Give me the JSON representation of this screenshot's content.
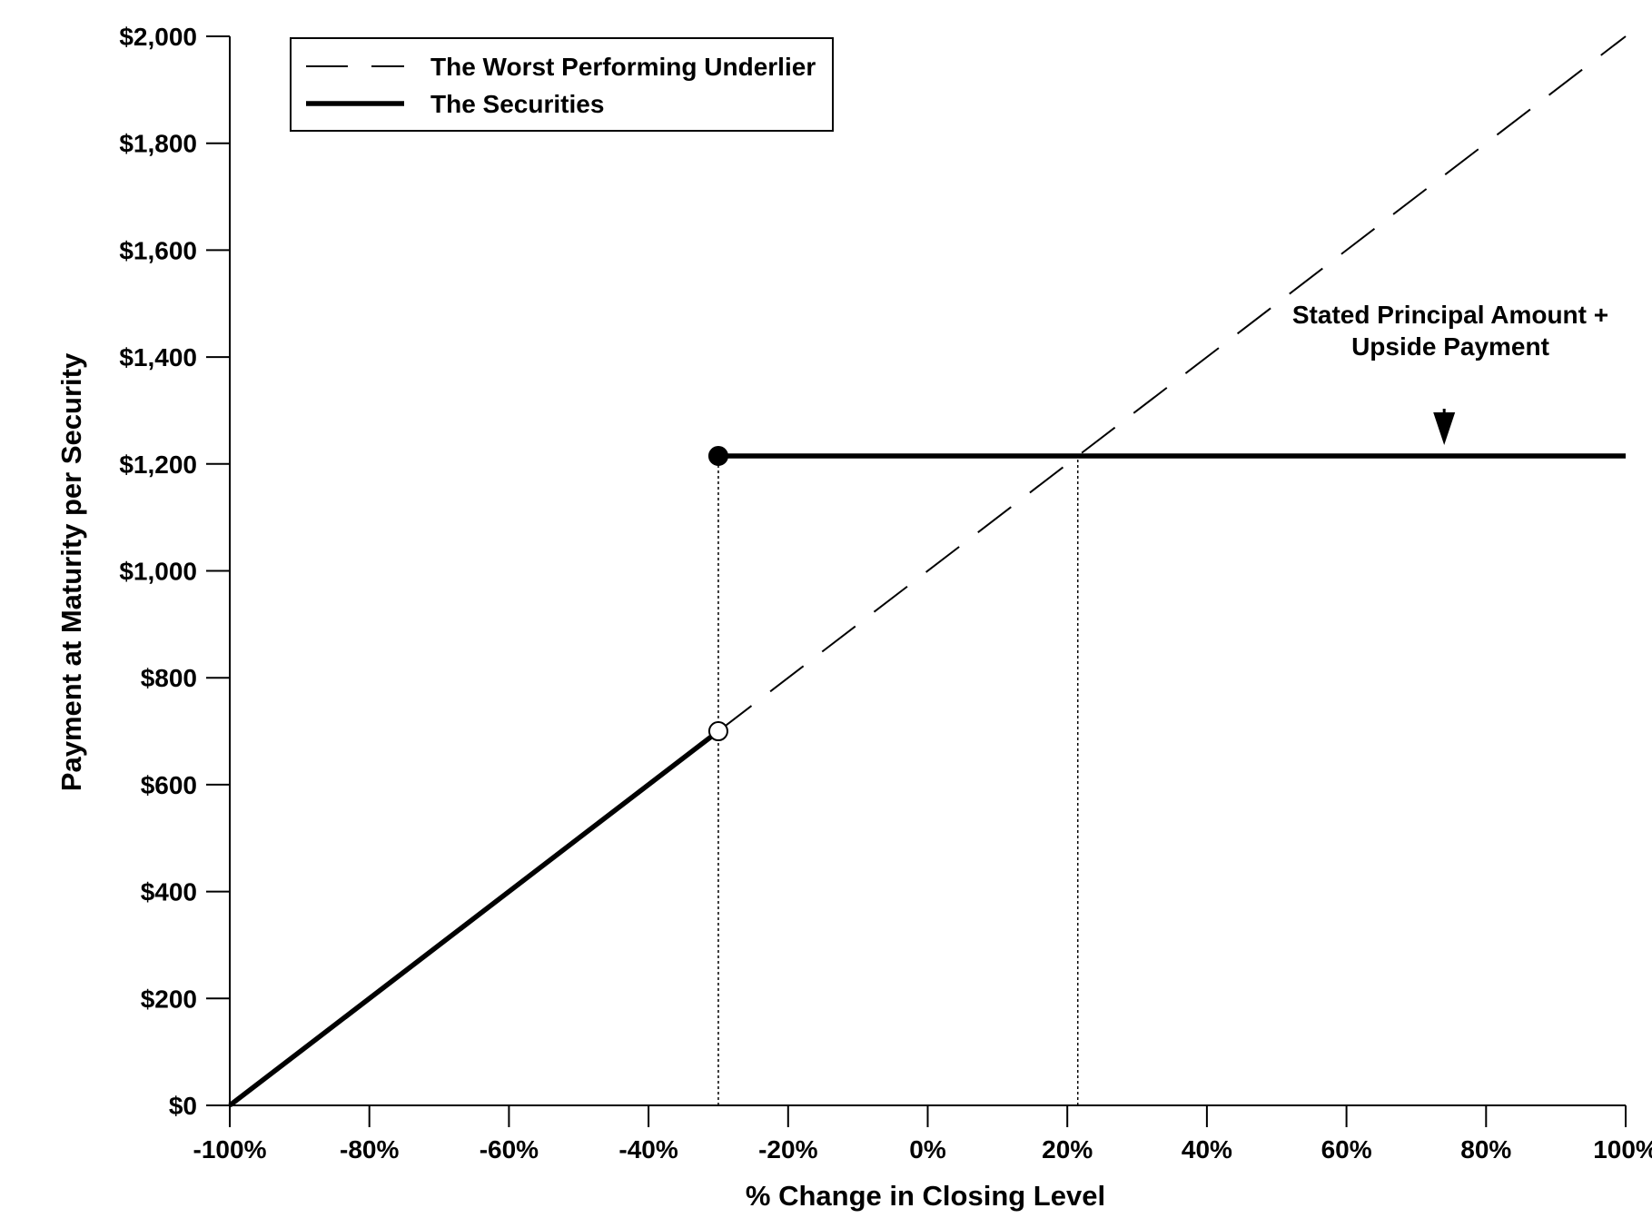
{
  "chart_data": {
    "type": "line",
    "xlabel": "% Change in Closing Level",
    "ylabel": "Payment at Maturity per Security",
    "xlim": [
      -100,
      100
    ],
    "ylim": [
      0,
      2000
    ],
    "grid": false,
    "legend_position": "top-left",
    "x_ticks": [
      {
        "value": -100,
        "label": "-100%"
      },
      {
        "value": -80,
        "label": "-80%"
      },
      {
        "value": -60,
        "label": "-60%"
      },
      {
        "value": -40,
        "label": "-40%"
      },
      {
        "value": -20,
        "label": "-20%"
      },
      {
        "value": 0,
        "label": "0%"
      },
      {
        "value": 20,
        "label": "20%"
      },
      {
        "value": 40,
        "label": "40%"
      },
      {
        "value": 60,
        "label": "60%"
      },
      {
        "value": 80,
        "label": "80%"
      },
      {
        "value": 100,
        "label": "100%"
      }
    ],
    "y_ticks": [
      {
        "value": 0,
        "label": "$0"
      },
      {
        "value": 200,
        "label": "$200"
      },
      {
        "value": 400,
        "label": "$400"
      },
      {
        "value": 600,
        "label": "$600"
      },
      {
        "value": 800,
        "label": "$800"
      },
      {
        "value": 1000,
        "label": "$1,000"
      },
      {
        "value": 1200,
        "label": "$1,200"
      },
      {
        "value": 1400,
        "label": "$1,400"
      },
      {
        "value": 1600,
        "label": "$1,600"
      },
      {
        "value": 1800,
        "label": "$1,800"
      },
      {
        "value": 2000,
        "label": "$2,000"
      }
    ],
    "series": [
      {
        "name": "The Worst Performing Underlier",
        "style": "dashed",
        "color": "#000000",
        "points": [
          [
            -30,
            700
          ],
          [
            100,
            2000
          ]
        ]
      },
      {
        "name": "The Securities",
        "style": "solid",
        "color": "#000000",
        "segments": [
          [
            [
              -100,
              0
            ],
            [
              -30,
              700
            ]
          ],
          [
            [
              -30,
              1215
            ],
            [
              100,
              1215
            ]
          ]
        ]
      }
    ],
    "markers": [
      {
        "x": -30,
        "y": 1215,
        "fill": "#000000"
      },
      {
        "x": -30,
        "y": 700,
        "fill": "#ffffff"
      }
    ],
    "reference_lines": [
      {
        "x": -30,
        "y_from": 0,
        "y_to": 1215,
        "style": "dotted"
      },
      {
        "x": 21.5,
        "y_from": 0,
        "y_to": 1215,
        "style": "dotted"
      }
    ],
    "annotations": [
      {
        "lines": [
          "Stated Principal Amount +",
          "Upside Payment"
        ],
        "arrow_to": {
          "x": 74,
          "y": 1215
        }
      }
    ]
  }
}
